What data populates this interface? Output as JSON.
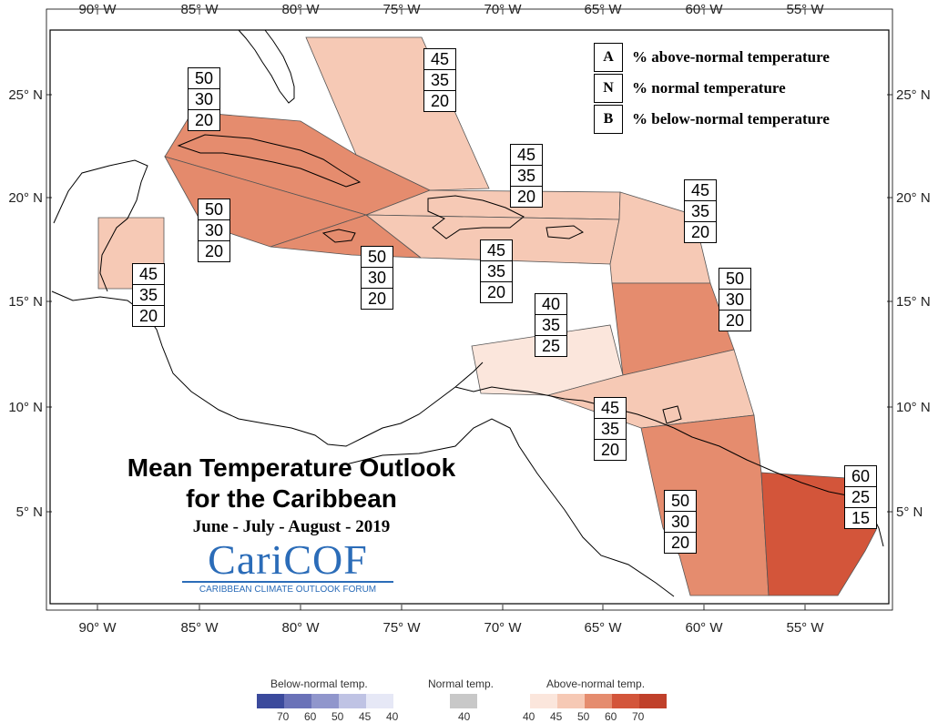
{
  "axes": {
    "longitude_ticks": [
      "90° W",
      "85° W",
      "80° W",
      "75° W",
      "70° W",
      "65° W",
      "60° W",
      "55° W"
    ],
    "latitude_ticks": [
      "25° N",
      "20° N",
      "15° N",
      "10° N",
      "5° N"
    ]
  },
  "key": {
    "rows": [
      {
        "letter": "A",
        "text": "% above-normal temperature"
      },
      {
        "letter": "N",
        "text": "% normal temperature"
      },
      {
        "letter": "B",
        "text": "% below-normal temperature"
      }
    ]
  },
  "title": {
    "line1": "Mean Temperature Outlook",
    "line2": "for the Caribbean",
    "season": "June - July - August - 2019"
  },
  "logo": {
    "name": "CariCOF",
    "subtitle": "CARIBBEAN CLIMATE OUTLOOK FORUM"
  },
  "zones": [
    {
      "id": "bahamas",
      "above": "45",
      "normal": "35",
      "below": "20",
      "color": "#f6c9b5"
    },
    {
      "id": "cuba",
      "above": "50",
      "normal": "30",
      "below": "20",
      "color": "#e58c6e"
    },
    {
      "id": "cayman",
      "above": "50",
      "normal": "30",
      "below": "20",
      "color": "#e48a6c"
    },
    {
      "id": "jamaica",
      "above": "50",
      "normal": "30",
      "below": "20",
      "color": "#e58c6e"
    },
    {
      "id": "belize",
      "above": "45",
      "normal": "35",
      "below": "20",
      "color": "#f6c9b5"
    },
    {
      "id": "hispaniola-north",
      "above": "45",
      "normal": "35",
      "below": "20",
      "color": "#f6c9b5"
    },
    {
      "id": "hispaniola-south",
      "above": "45",
      "normal": "35",
      "below": "20",
      "color": "#f6c9b5"
    },
    {
      "id": "leeward",
      "above": "45",
      "normal": "35",
      "below": "20",
      "color": "#f6c9b5"
    },
    {
      "id": "windward",
      "above": "50",
      "normal": "30",
      "below": "20",
      "color": "#e58c6e"
    },
    {
      "id": "abc-islands",
      "above": "40",
      "normal": "35",
      "below": "25",
      "color": "#fbe6dc"
    },
    {
      "id": "trinidad",
      "above": "45",
      "normal": "35",
      "below": "20",
      "color": "#f6c9b5"
    },
    {
      "id": "guyana",
      "above": "50",
      "normal": "30",
      "below": "20",
      "color": "#e58c6e"
    },
    {
      "id": "suriname-guiana",
      "above": "60",
      "normal": "25",
      "below": "15",
      "color": "#d3553a"
    }
  ],
  "legend": {
    "below_title": "Below-normal temp.",
    "normal_title": "Normal temp.",
    "above_title": "Above-normal temp.",
    "below_ticks": [
      "70",
      "60",
      "50",
      "45",
      "40"
    ],
    "normal_ticks": [
      "40"
    ],
    "above_ticks": [
      "40",
      "45",
      "50",
      "60",
      "70"
    ],
    "below_colors": [
      "#3b4a9c",
      "#6a72b8",
      "#9096cc",
      "#bfc3e4",
      "#e6e8f6"
    ],
    "normal_color": "#c8c8c8",
    "above_colors": [
      "#fbe6dc",
      "#f6c9b5",
      "#e58c6e",
      "#d3553a",
      "#c0402a"
    ]
  }
}
